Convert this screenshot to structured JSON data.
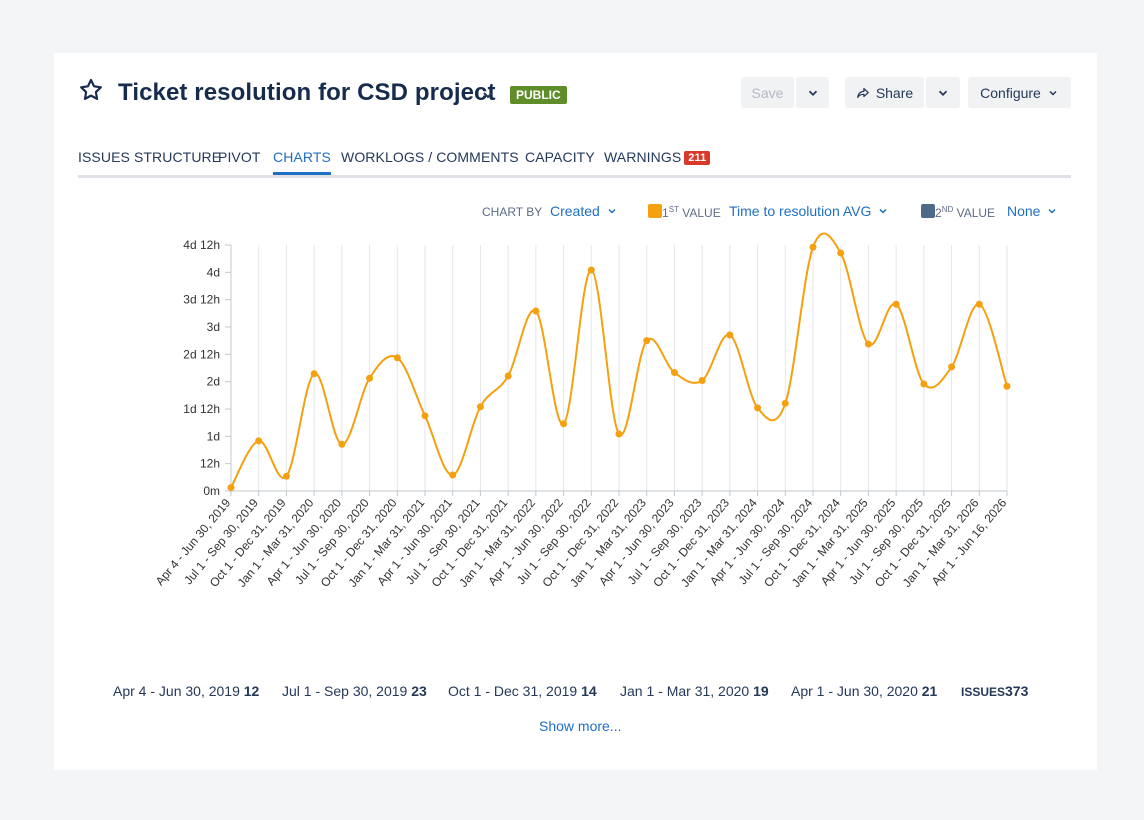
{
  "header": {
    "title": "Ticket resolution for CSD project",
    "badge": "PUBLIC",
    "save_label": "Save",
    "share_label": "Share",
    "configure_label": "Configure"
  },
  "tabs": [
    {
      "label": "ISSUES STRUCTURE"
    },
    {
      "label": "PIVOT"
    },
    {
      "label": "CHARTS",
      "active": true
    },
    {
      "label": "WORKLOGS / COMMENTS"
    },
    {
      "label": "CAPACITY"
    },
    {
      "label": "WARNINGS",
      "count": "211"
    }
  ],
  "controls": {
    "chart_by_label": "CHART BY",
    "chart_by_value": "Created",
    "first_value_label_num": "1",
    "first_value_label_sup": "ST",
    "first_value_label_rest": " VALUE",
    "first_value": "Time to resolution AVG",
    "first_color": "#f5a00f",
    "second_value_label_num": "2",
    "second_value_label_sup": "ND",
    "second_value_label_rest": " VALUE",
    "second_value": "None",
    "second_color": "#4c6a8a"
  },
  "chart_data": {
    "type": "line",
    "x": [
      "Apr 4 - Jun 30, 2019",
      "Jul 1 - Sep 30, 2019",
      "Oct 1 - Dec 31, 2019",
      "Jan 1 - Mar 31, 2020",
      "Apr 1 - Jun 30, 2020",
      "Jul 1 - Sep 30, 2020",
      "Oct 1 - Dec 31, 2020",
      "Jan 1 - Mar 31, 2021",
      "Apr 1 - Jun 30, 2021",
      "Jul 1 - Sep 30, 2021",
      "Oct 1 - Dec 31, 2021",
      "Jan 1 - Mar 31, 2022",
      "Apr 1 - Jun 30, 2022",
      "Jul 1 - Sep 30, 2022",
      "Oct 1 - Dec 31, 2022",
      "Jan 1 - Mar 31, 2023",
      "Apr 1 - Jun 30, 2023",
      "Jul 1 - Sep 30, 2023",
      "Oct 1 - Dec 31, 2023",
      "Jan 1 - Mar 31, 2024",
      "Apr 1 - Jun 30, 2024",
      "Jul 1 - Sep 30, 2024",
      "Oct 1 - Dec 31, 2024",
      "Jan 1 - Mar 31, 2025",
      "Apr 1 - Jun 30, 2025",
      "Jul 1 - Sep 30, 2025",
      "Oct 1 - Dec 31, 2025",
      "Jan 1 - Mar 31, 2026",
      "Apr 1 - Jun 16, 2026"
    ],
    "series": [
      {
        "values_hours": [
          3,
          44,
          13,
          103,
          41,
          99,
          117,
          66,
          14,
          74,
          101,
          158,
          59,
          194,
          50,
          132,
          104,
          97,
          137,
          73,
          77,
          214,
          209,
          129,
          164,
          94,
          109,
          164,
          92
        ],
        "color": "#f5a00f"
      }
    ],
    "yticks": [
      "0m",
      "12h",
      "1d",
      "1d 12h",
      "2d",
      "2d 12h",
      "3d",
      "3d 12h",
      "4d",
      "4d 12h"
    ],
    "ylim_hours": [
      0,
      216
    ],
    "grid": "vertical"
  },
  "summary": [
    {
      "label": "Apr 4 - Jun 30, 2019",
      "count": "12"
    },
    {
      "label": "Jul 1 - Sep 30, 2019",
      "count": "23"
    },
    {
      "label": "Oct 1 - Dec 31, 2019",
      "count": "14"
    },
    {
      "label": "Jan 1 - Mar 31, 2020",
      "count": "19"
    },
    {
      "label": "Apr 1 - Jun 30, 2020",
      "count": "21"
    }
  ],
  "issues_label": "ISSUES",
  "issues_count": "373",
  "show_more": "Show more..."
}
